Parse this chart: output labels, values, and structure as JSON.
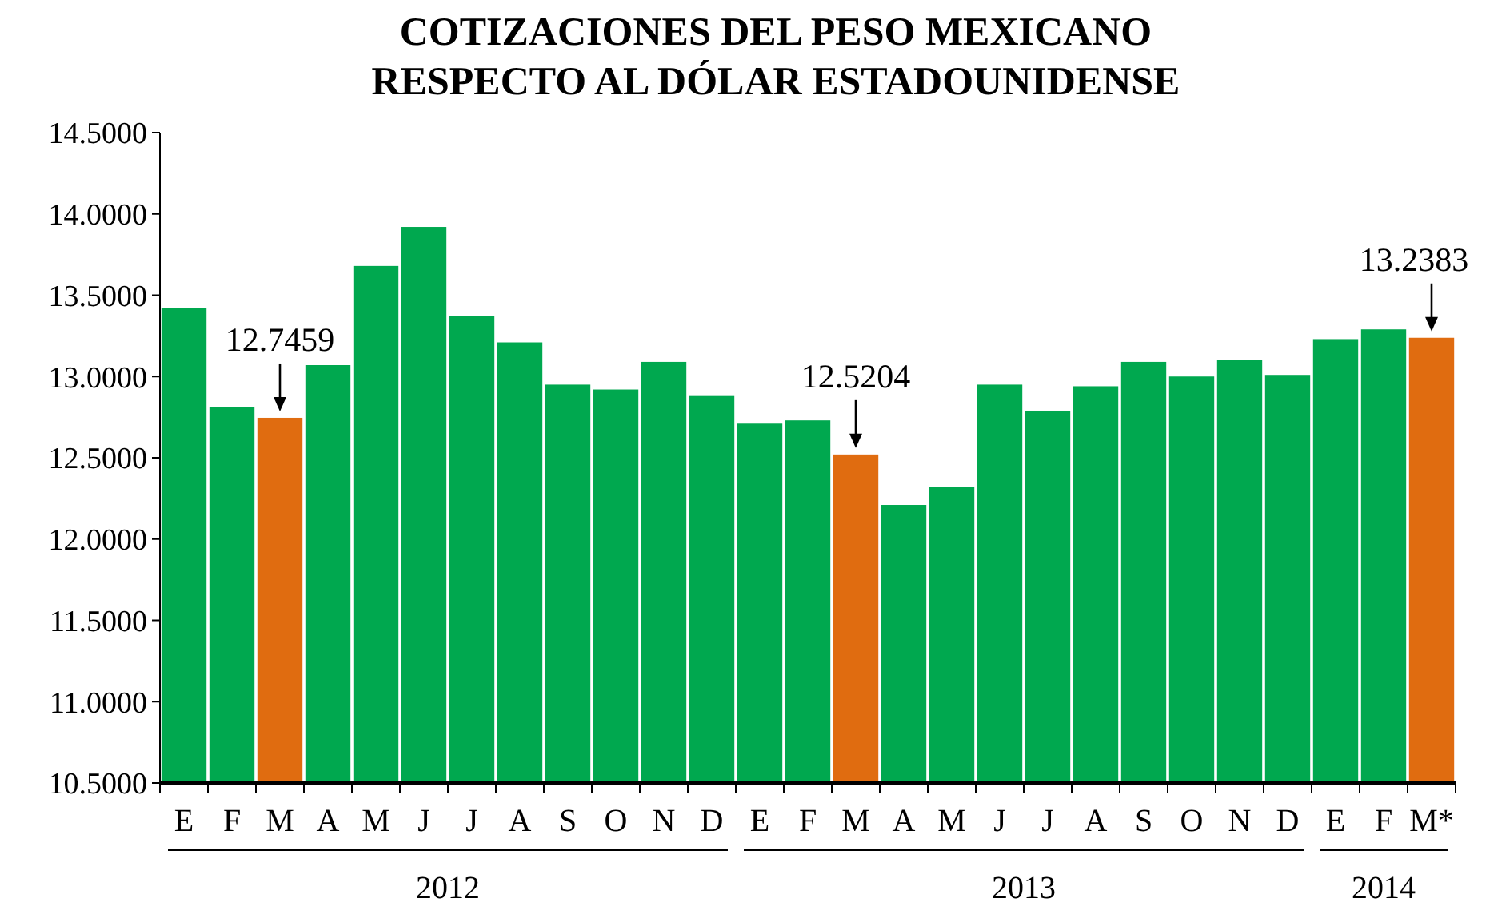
{
  "chart_data": {
    "type": "bar",
    "title": "COTIZACIONES DEL PESO MEXICANO\nRESPECTO AL DÓLAR ESTADOUNIDENSE",
    "categories": [
      "E",
      "F",
      "M",
      "A",
      "M",
      "J",
      "J",
      "A",
      "S",
      "O",
      "N",
      "D",
      "E",
      "F",
      "M",
      "A",
      "M",
      "J",
      "J",
      "A",
      "S",
      "O",
      "N",
      "D",
      "E",
      "F",
      "M*"
    ],
    "values": [
      13.42,
      12.81,
      12.7459,
      13.07,
      13.68,
      13.92,
      13.37,
      13.21,
      12.95,
      12.92,
      13.09,
      12.88,
      12.71,
      12.73,
      12.5204,
      12.21,
      12.32,
      12.95,
      12.79,
      12.94,
      13.09,
      13.0,
      13.1,
      13.01,
      13.23,
      13.29,
      13.2383
    ],
    "colors": [
      "#00a84f",
      "#00a84f",
      "#e06c10",
      "#00a84f",
      "#00a84f",
      "#00a84f",
      "#00a84f",
      "#00a84f",
      "#00a84f",
      "#00a84f",
      "#00a84f",
      "#00a84f",
      "#00a84f",
      "#00a84f",
      "#e06c10",
      "#00a84f",
      "#00a84f",
      "#00a84f",
      "#00a84f",
      "#00a84f",
      "#00a84f",
      "#00a84f",
      "#00a84f",
      "#00a84f",
      "#00a84f",
      "#00a84f",
      "#e06c10"
    ],
    "value_labels": [
      null,
      null,
      "12.7459",
      null,
      null,
      null,
      null,
      null,
      null,
      null,
      null,
      null,
      null,
      null,
      "12.5204",
      null,
      null,
      null,
      null,
      null,
      null,
      null,
      null,
      null,
      null,
      null,
      "13.2383"
    ],
    "annotations": [
      "2012",
      "2013",
      "2014"
    ],
    "ylim": [
      10.5,
      14.5
    ],
    "yticks": [
      {
        "value": 10.5,
        "label": "10.5000"
      },
      {
        "value": 11,
        "label": "11.0000"
      },
      {
        "value": 11.5,
        "label": "11.5000"
      },
      {
        "value": 12,
        "label": "12.0000"
      },
      {
        "value": 12.5,
        "label": "12.5000"
      },
      {
        "value": 13,
        "label": "13.0000"
      },
      {
        "value": 13.5,
        "label": "13.5000"
      },
      {
        "value": 14,
        "label": "14.0000"
      },
      {
        "value": 14.5,
        "label": "14.5000"
      }
    ],
    "grid": false
  }
}
